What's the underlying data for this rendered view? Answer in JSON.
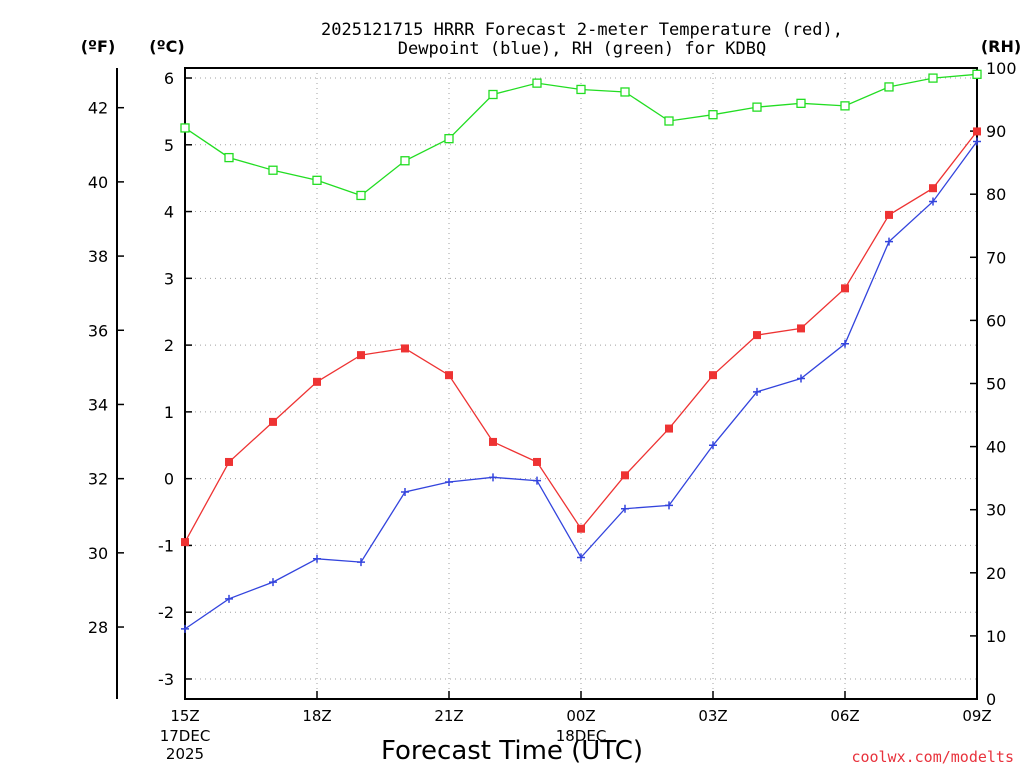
{
  "chart_data": {
    "type": "line",
    "title_line1": "2025121715 HRRR Forecast 2-meter Temperature (red),",
    "title_line2": "Dewpoint (blue), RH (green) for KDBQ",
    "xlabel": "Forecast Time (UTC)",
    "credit": "coolwx.com/modelts",
    "units": {
      "fahrenheit": "(ºF)",
      "celsius": "(ºC)",
      "rh": "(RH)"
    },
    "hours": [
      0,
      1,
      2,
      3,
      4,
      5,
      6,
      7,
      8,
      9,
      10,
      11,
      12,
      13,
      14,
      15,
      16,
      17,
      18
    ],
    "x_ticks": [
      {
        "h": 0,
        "label": "15Z",
        "date": "17DEC",
        "year": "2025"
      },
      {
        "h": 3,
        "label": "18Z"
      },
      {
        "h": 6,
        "label": "21Z"
      },
      {
        "h": 9,
        "label": "00Z",
        "date": "18DEC"
      },
      {
        "h": 12,
        "label": "03Z"
      },
      {
        "h": 15,
        "label": "06Z"
      },
      {
        "h": 18,
        "label": "09Z"
      }
    ],
    "xlim": [
      0,
      18
    ],
    "celsius_axis": {
      "ylim": [
        -3.3,
        6.15
      ],
      "ticks": [
        -3,
        -2,
        -1,
        0,
        1,
        2,
        3,
        4,
        5,
        6
      ]
    },
    "fahrenheit_axis": {
      "ticks": [
        28,
        30,
        32,
        34,
        36,
        38,
        40,
        42
      ]
    },
    "rh_axis": {
      "ylim": [
        0,
        100
      ],
      "ticks": [
        0,
        10,
        20,
        30,
        40,
        50,
        60,
        70,
        80,
        90,
        100
      ]
    },
    "series": [
      {
        "name": "Temperature",
        "unit": "C",
        "color": "#ee3333",
        "marker": "filled-square",
        "values": [
          -0.95,
          0.25,
          0.85,
          1.45,
          1.85,
          1.95,
          1.55,
          0.55,
          0.25,
          -0.75,
          0.05,
          0.75,
          1.55,
          2.15,
          2.25,
          2.85,
          3.95,
          4.35,
          5.2
        ]
      },
      {
        "name": "Dewpoint",
        "unit": "C",
        "color": "#3344dd",
        "marker": "plus",
        "values": [
          -2.25,
          -1.8,
          -1.55,
          -1.2,
          -1.25,
          -0.2,
          -0.05,
          0.02,
          -0.03,
          -1.18,
          -0.45,
          -0.4,
          0.5,
          1.3,
          1.5,
          2.02,
          3.55,
          4.15,
          5.05
        ]
      },
      {
        "name": "RH",
        "unit": "%",
        "color": "#22dd22",
        "marker": "open-square",
        "values": [
          90.5,
          85.8,
          83.8,
          82.2,
          79.8,
          85.3,
          88.8,
          95.8,
          97.6,
          96.6,
          96.2,
          91.6,
          92.6,
          93.8,
          94.4,
          94.0,
          97.0,
          98.4,
          99.0
        ]
      }
    ]
  }
}
